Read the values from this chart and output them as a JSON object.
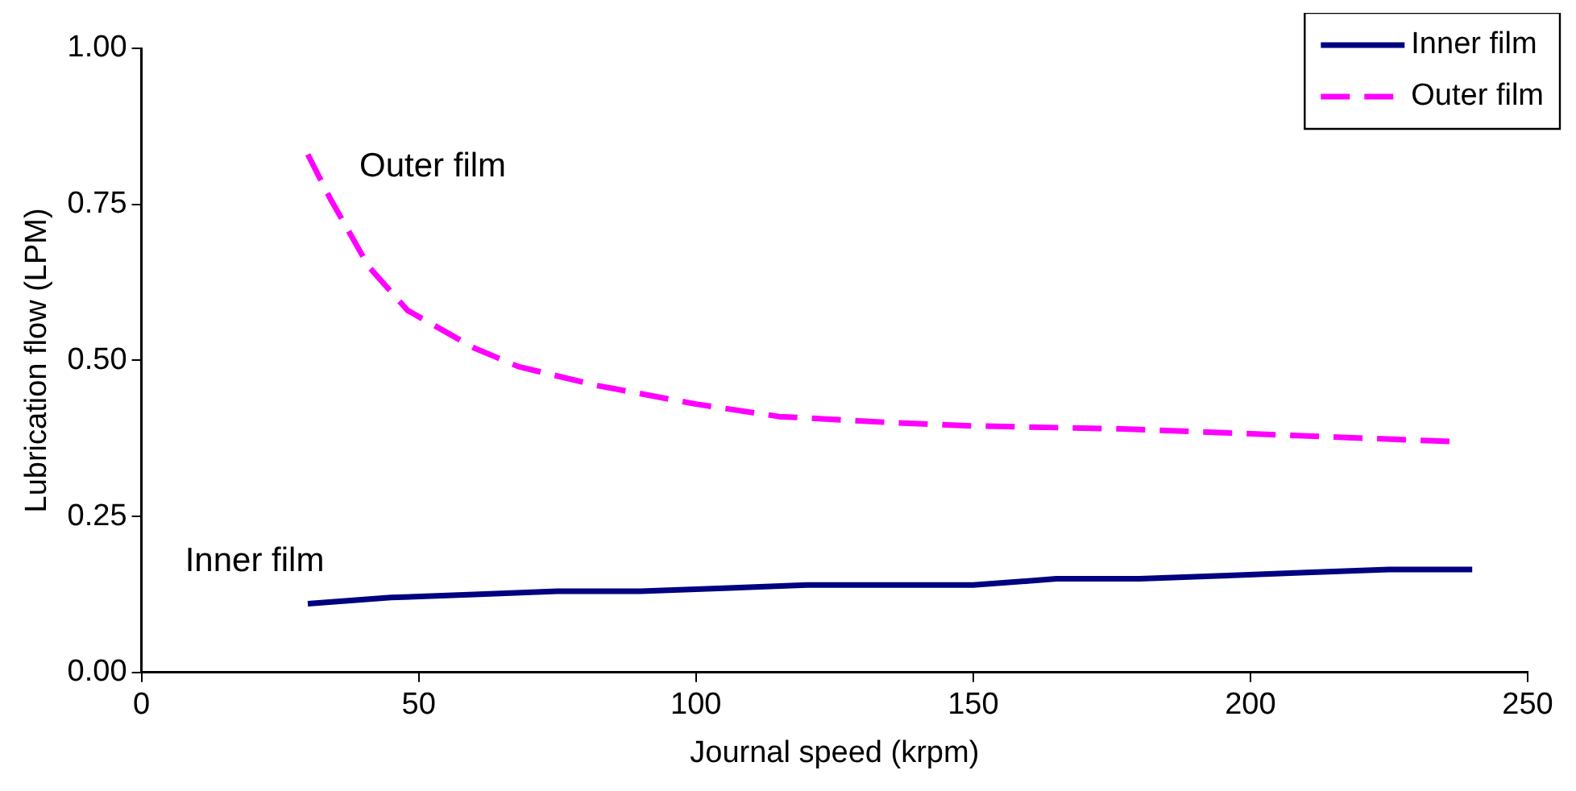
{
  "chart_data": {
    "type": "line",
    "xlabel": "Journal speed (krpm)",
    "ylabel": "Lubrication flow (LPM)",
    "xlim": [
      0,
      250
    ],
    "xticks": [
      0,
      50,
      100,
      150,
      200,
      250
    ],
    "ylim": [
      0,
      1
    ],
    "yticks": [
      {
        "value": 0,
        "label": "0.00"
      },
      {
        "value": 0.25,
        "label": "0.25"
      },
      {
        "value": 0.5,
        "label": "0.50"
      },
      {
        "value": 0.75,
        "label": "0.75"
      },
      {
        "value": 1,
        "label": "1.00"
      }
    ],
    "grid": false,
    "legend": "top right",
    "marker": "none",
    "series": [
      {
        "name": "Inner film",
        "color": "#000080",
        "line_style": "solid",
        "x": [
          30,
          45,
          60,
          75,
          90,
          105,
          120,
          135,
          150,
          165,
          180,
          195,
          210,
          225,
          240
        ],
        "values": [
          0.11,
          0.12,
          0.125,
          0.13,
          0.13,
          0.135,
          0.14,
          0.14,
          0.14,
          0.15,
          0.15,
          0.155,
          0.16,
          0.165,
          0.165
        ]
      },
      {
        "name": "Outer film",
        "color": "#ff00ff",
        "line_style": "dashed",
        "x": [
          30,
          34,
          41,
          48,
          60,
          68,
          82,
          100,
          115,
          136,
          150,
          178,
          236
        ],
        "values": [
          0.83,
          0.76,
          0.65,
          0.58,
          0.52,
          0.49,
          0.46,
          0.43,
          0.41,
          0.4,
          0.395,
          0.39,
          0.37
        ]
      }
    ],
    "annotations": [
      "Inner film",
      "Outer film"
    ]
  }
}
